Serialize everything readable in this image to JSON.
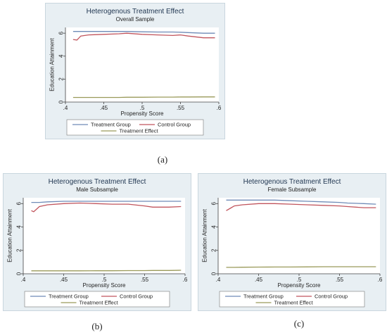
{
  "captions": [
    "(a)",
    "(b)",
    "(c)"
  ],
  "colors": {
    "treatment": "#6f8bb7",
    "control": "#c1555d",
    "effect": "#9a9a5a"
  },
  "chart_data": [
    {
      "type": "line",
      "title": "Heterogenous Treatment Effect",
      "subtitle": "Overall Sample",
      "xlabel": "Propensity Score",
      "ylabel": "Education Attainment",
      "xticks": [
        ".4",
        ".45",
        ".5",
        ".55",
        ".6"
      ],
      "yticks": [
        "0",
        "2",
        "4",
        "6"
      ],
      "xlim": [
        0.4,
        0.6
      ],
      "ylim": [
        0,
        6.5
      ],
      "x": [
        0.41,
        0.415,
        0.42,
        0.43,
        0.45,
        0.47,
        0.48,
        0.5,
        0.52,
        0.54,
        0.55,
        0.56,
        0.58,
        0.595
      ],
      "series": [
        {
          "name": "Treatment Group",
          "key": "treatment",
          "values": [
            6.15,
            6.15,
            6.15,
            6.15,
            6.15,
            6.15,
            6.15,
            6.12,
            6.1,
            6.1,
            6.08,
            6.05,
            6.0,
            6.0
          ]
        },
        {
          "name": "Control Group",
          "key": "control",
          "values": [
            5.45,
            5.4,
            5.75,
            5.85,
            5.9,
            5.95,
            6.0,
            5.9,
            5.85,
            5.8,
            5.85,
            5.75,
            5.6,
            5.6
          ]
        },
        {
          "name": "Treatment Effect",
          "key": "effect",
          "values": [
            0.4,
            0.4,
            0.4,
            0.4,
            0.4,
            0.4,
            0.42,
            0.42,
            0.43,
            0.43,
            0.44,
            0.44,
            0.45,
            0.45
          ]
        }
      ],
      "legend": [
        "Treatment Group",
        "Control Group",
        "Treatment Effect"
      ]
    },
    {
      "type": "line",
      "title": "Heterogenous Treatment Effect",
      "subtitle": "Male Subsample",
      "xlabel": "Propensity Score",
      "ylabel": "Education Attainment",
      "xticks": [
        ".4",
        ".45",
        ".5",
        ".55",
        ".6"
      ],
      "yticks": [
        "0",
        "2",
        "4",
        "6"
      ],
      "xlim": [
        0.4,
        0.6
      ],
      "ylim": [
        0,
        6.5
      ],
      "x": [
        0.41,
        0.413,
        0.42,
        0.43,
        0.45,
        0.47,
        0.49,
        0.51,
        0.53,
        0.55,
        0.56,
        0.58,
        0.595
      ],
      "series": [
        {
          "name": "Treatment Group",
          "key": "treatment",
          "values": [
            6.1,
            6.1,
            6.1,
            6.15,
            6.2,
            6.2,
            6.2,
            6.2,
            6.2,
            6.2,
            6.2,
            6.2,
            6.2
          ]
        },
        {
          "name": "Control Group",
          "key": "control",
          "values": [
            5.4,
            5.3,
            5.75,
            5.9,
            6.0,
            6.05,
            6.0,
            5.95,
            5.95,
            5.8,
            5.7,
            5.7,
            5.75
          ]
        },
        {
          "name": "Treatment Effect",
          "key": "effect",
          "values": [
            0.25,
            0.25,
            0.25,
            0.25,
            0.25,
            0.25,
            0.26,
            0.26,
            0.27,
            0.27,
            0.28,
            0.28,
            0.3
          ]
        }
      ],
      "legend": [
        "Treatment Group",
        "Control Group",
        "Treatment Effect"
      ]
    },
    {
      "type": "line",
      "title": "Heterogenous Treatment Effect",
      "subtitle": "Female Subsample",
      "xlabel": "Propensity Score",
      "ylabel": "Education Attainment",
      "xticks": [
        ".4",
        ".45",
        ".5",
        ".55",
        ".6"
      ],
      "yticks": [
        "0",
        "2",
        "4",
        "6"
      ],
      "xlim": [
        0.4,
        0.6
      ],
      "ylim": [
        0,
        6.5
      ],
      "x": [
        0.41,
        0.415,
        0.42,
        0.43,
        0.45,
        0.47,
        0.49,
        0.51,
        0.53,
        0.55,
        0.56,
        0.58,
        0.595
      ],
      "series": [
        {
          "name": "Treatment Group",
          "key": "treatment",
          "values": [
            6.3,
            6.3,
            6.3,
            6.3,
            6.3,
            6.3,
            6.25,
            6.2,
            6.15,
            6.1,
            6.05,
            6.0,
            5.95
          ]
        },
        {
          "name": "Control Group",
          "key": "control",
          "values": [
            5.4,
            5.6,
            5.8,
            5.9,
            6.0,
            6.0,
            5.95,
            5.9,
            5.85,
            5.8,
            5.75,
            5.65,
            5.65
          ]
        },
        {
          "name": "Treatment Effect",
          "key": "effect",
          "values": [
            0.55,
            0.55,
            0.55,
            0.56,
            0.57,
            0.58,
            0.58,
            0.59,
            0.6,
            0.6,
            0.6,
            0.6,
            0.6
          ]
        }
      ],
      "legend": [
        "Treatment Group",
        "Control Group",
        "Treatment Effect"
      ]
    }
  ]
}
